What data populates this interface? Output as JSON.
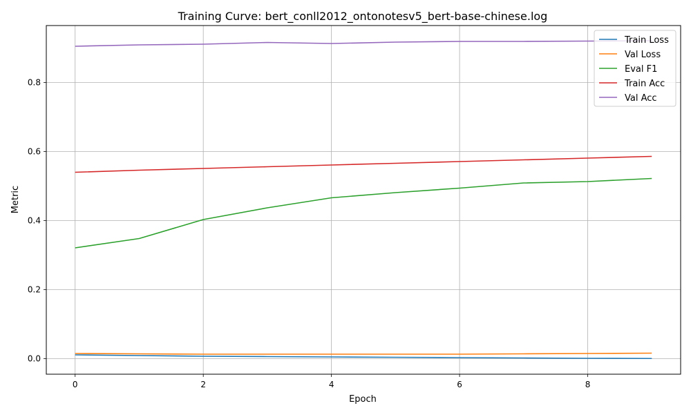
{
  "chart_data": {
    "type": "line",
    "title": "Training Curve: bert_conll2012_ontonotesv5_bert-base-chinese.log",
    "xlabel": "Epoch",
    "ylabel": "Metric",
    "x": [
      0,
      1,
      2,
      3,
      4,
      5,
      6,
      7,
      8,
      9
    ],
    "xlim": [
      -0.45,
      9.45
    ],
    "ylim": [
      -0.045,
      0.965
    ],
    "xticks": [
      0,
      2,
      4,
      6,
      8
    ],
    "yticks": [
      0.0,
      0.2,
      0.4,
      0.6,
      0.8
    ],
    "xtick_labels": [
      "0",
      "2",
      "4",
      "6",
      "8"
    ],
    "ytick_labels": [
      "0.0",
      "0.2",
      "0.4",
      "0.6",
      "0.8"
    ],
    "grid": true,
    "legend_position": "upper right",
    "series": [
      {
        "name": "Train Loss",
        "color": "#1f77b4",
        "values": [
          0.011,
          0.009,
          0.007,
          0.006,
          0.005,
          0.004,
          0.003,
          0.002,
          0.001,
          0.0005
        ]
      },
      {
        "name": "Val Loss",
        "color": "#ff7f0e",
        "values": [
          0.015,
          0.014,
          0.013,
          0.013,
          0.013,
          0.013,
          0.013,
          0.014,
          0.015,
          0.016
        ]
      },
      {
        "name": "Eval F1",
        "color": "#2ca02c",
        "values": [
          0.321,
          0.348,
          0.403,
          0.437,
          0.466,
          0.481,
          0.494,
          0.509,
          0.513,
          0.522
        ]
      },
      {
        "name": "Train Acc",
        "color": "#d62728",
        "values": [
          0.54,
          0.546,
          0.551,
          0.556,
          0.561,
          0.566,
          0.571,
          0.576,
          0.581,
          0.586
        ]
      },
      {
        "name": "Val Acc",
        "color": "#9467bd",
        "values": [
          0.905,
          0.909,
          0.911,
          0.916,
          0.913,
          0.917,
          0.919,
          0.919,
          0.92,
          0.921
        ]
      }
    ]
  }
}
